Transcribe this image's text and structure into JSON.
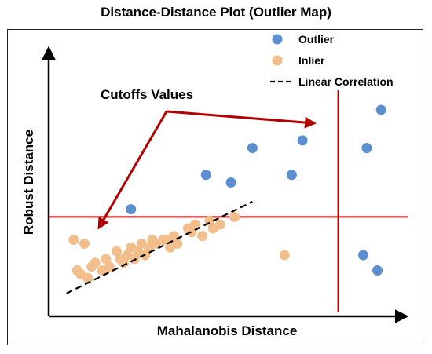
{
  "chart_data": {
    "type": "scatter",
    "title": "Distance-Distance Plot (Outlier Map)",
    "xlabel": "Mahalanobis Distance",
    "ylabel": "Robust Distance",
    "legend_position": "top-right",
    "legend": [
      {
        "label": "Outlier",
        "marker": "circle",
        "color": "#5b8fd0"
      },
      {
        "label": "Inlier",
        "marker": "circle",
        "color": "#f2bf8c"
      },
      {
        "label": "Linear Correlation",
        "marker": "dashed-line",
        "color": "#000000"
      }
    ],
    "annotation": {
      "text": "Cutoffs Values",
      "arrow_color": "#c00000"
    },
    "cutoffs": {
      "x": 8.1,
      "y": 2.6
    },
    "xlim": [
      0,
      10
    ],
    "ylim": [
      0,
      7
    ],
    "series": [
      {
        "name": "Outlier",
        "color": "#5b8fd0",
        "points": [
          [
            2.3,
            2.8
          ],
          [
            4.4,
            3.7
          ],
          [
            5.1,
            3.5
          ],
          [
            5.7,
            4.4
          ],
          [
            6.8,
            3.7
          ],
          [
            7.1,
            4.6
          ],
          [
            8.9,
            4.4
          ],
          [
            9.3,
            5.4
          ],
          [
            8.8,
            1.6
          ],
          [
            9.2,
            1.2
          ]
        ]
      },
      {
        "name": "Inlier",
        "color": "#f2bf8c",
        "points": [
          [
            0.7,
            2.0
          ],
          [
            1.0,
            1.9
          ],
          [
            0.8,
            1.2
          ],
          [
            0.9,
            1.1
          ],
          [
            1.1,
            1.0
          ],
          [
            1.2,
            1.3
          ],
          [
            1.3,
            1.4
          ],
          [
            1.6,
            1.5
          ],
          [
            1.7,
            1.3
          ],
          [
            1.9,
            1.7
          ],
          [
            2.1,
            1.4
          ],
          [
            2.2,
            1.6
          ],
          [
            2.3,
            1.8
          ],
          [
            2.4,
            1.5
          ],
          [
            2.5,
            1.7
          ],
          [
            2.6,
            1.9
          ],
          [
            2.7,
            1.6
          ],
          [
            2.8,
            1.8
          ],
          [
            2.9,
            2.0
          ],
          [
            3.0,
            1.9
          ],
          [
            3.2,
            2.0
          ],
          [
            3.4,
            1.8
          ],
          [
            3.5,
            2.1
          ],
          [
            3.6,
            1.9
          ],
          [
            3.9,
            2.3
          ],
          [
            4.1,
            2.4
          ],
          [
            4.3,
            2.1
          ],
          [
            4.5,
            2.5
          ],
          [
            4.6,
            2.3
          ],
          [
            4.8,
            2.4
          ],
          [
            5.2,
            2.6
          ],
          [
            4.0,
            2.2
          ],
          [
            1.5,
            1.2
          ],
          [
            2.0,
            1.5
          ],
          [
            3.3,
            2.0
          ],
          [
            6.6,
            1.6
          ]
        ]
      }
    ],
    "trend_line": {
      "name": "Linear Correlation",
      "from": [
        0.5,
        0.6
      ],
      "to": [
        5.7,
        3.0
      ]
    }
  }
}
